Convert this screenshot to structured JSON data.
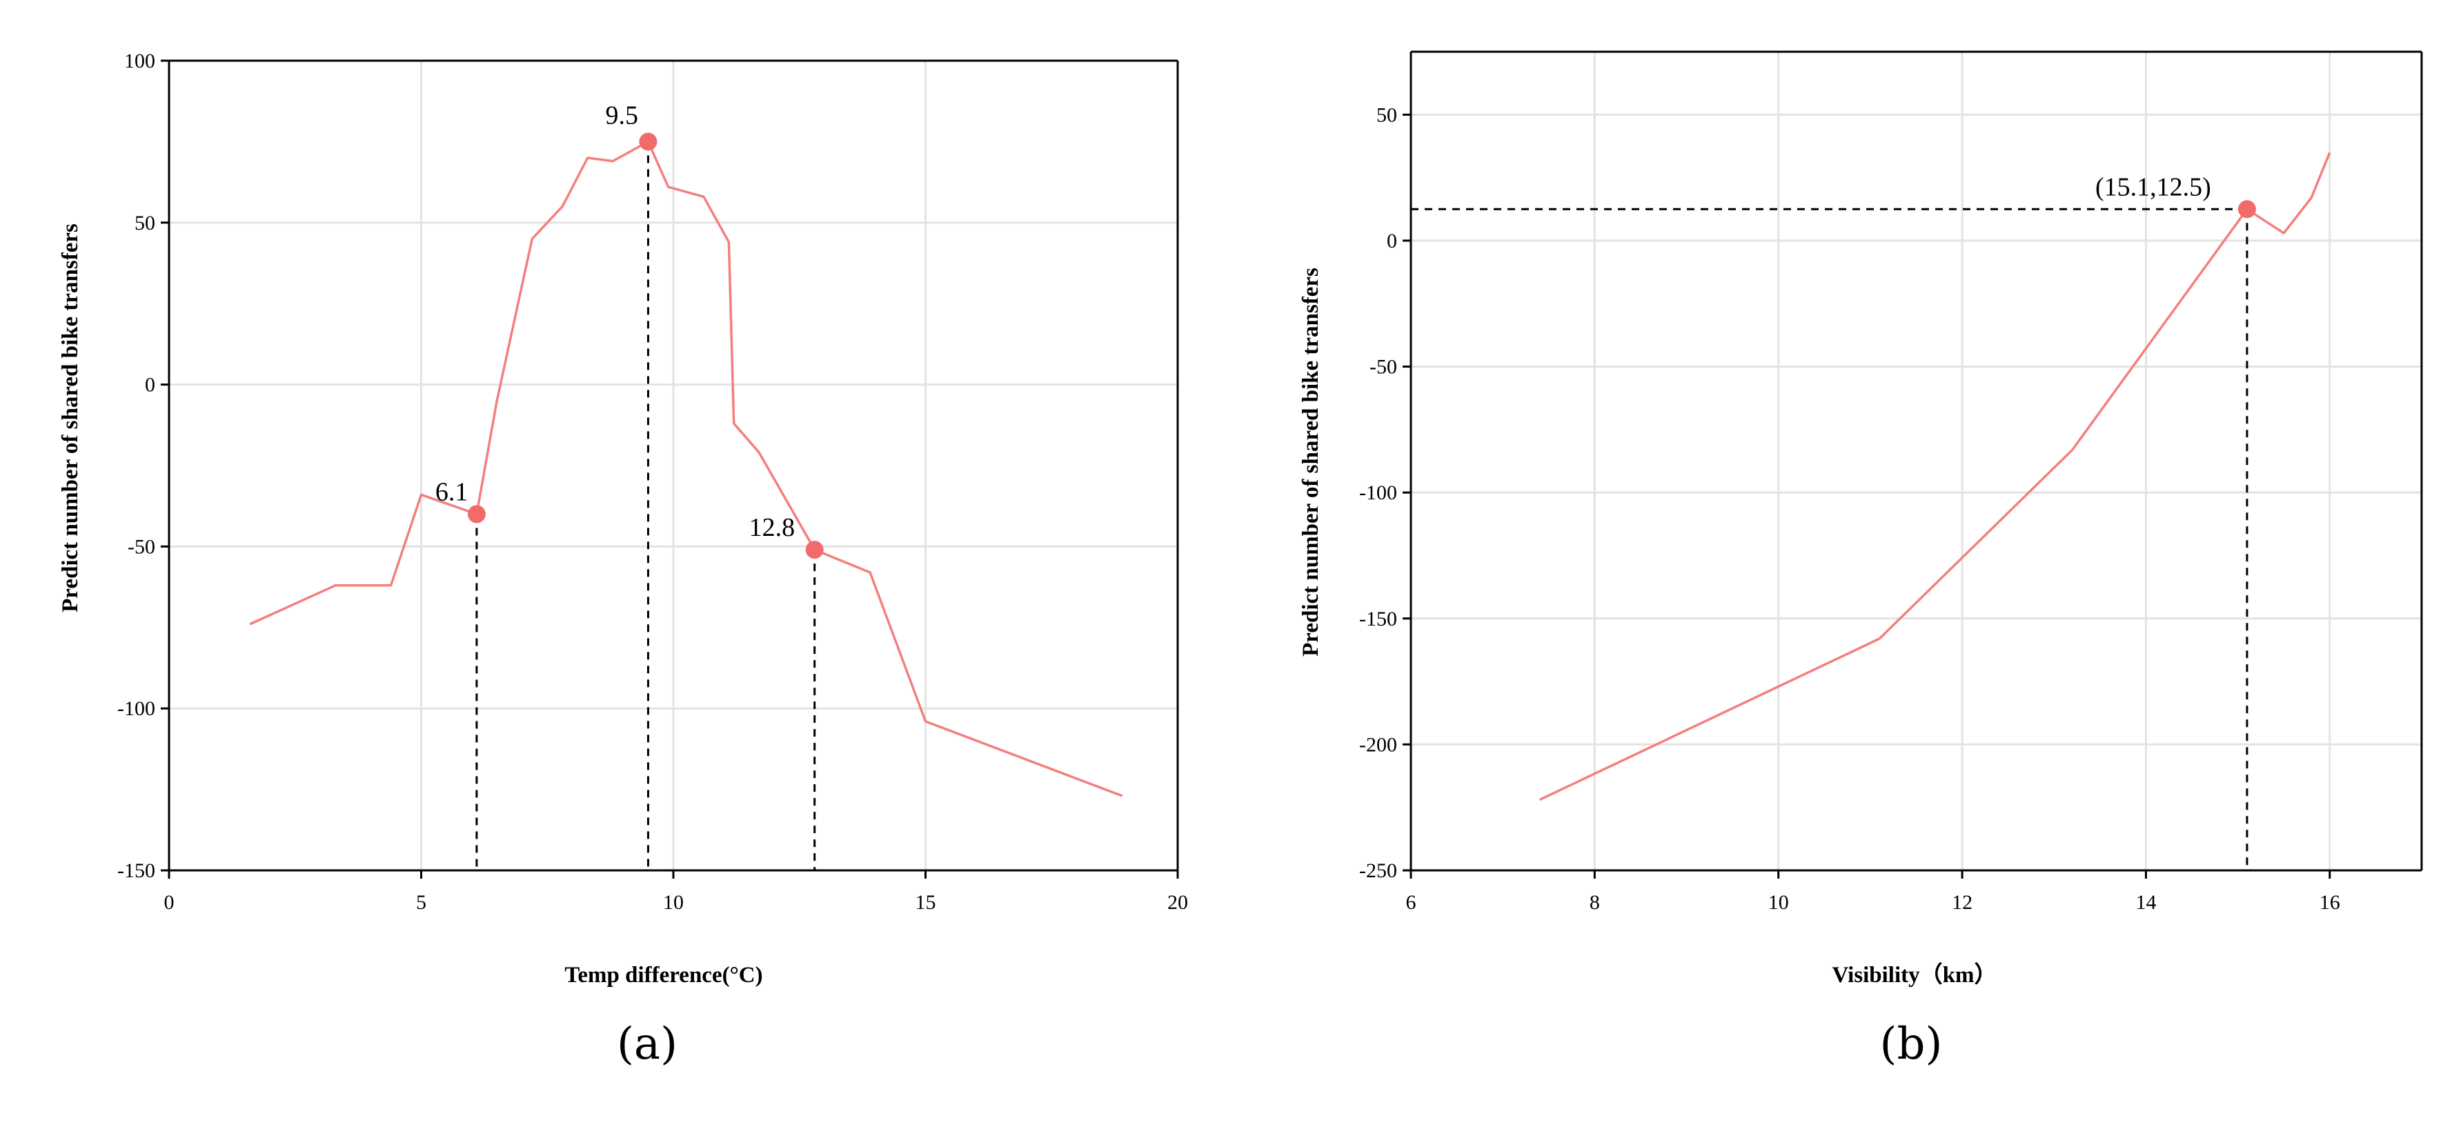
{
  "chart_data": [
    {
      "type": "line",
      "caption": "(a)",
      "xlabel": "Temp difference(°C)",
      "ylabel": "Predict number of shared bike transfers",
      "xlim": [
        0,
        20
      ],
      "ylim": [
        -150,
        100
      ],
      "xticks": [
        "0",
        "5",
        "10",
        "15",
        "20"
      ],
      "yticks": [
        "-150",
        "-100",
        "-50",
        "0",
        "50",
        "100"
      ],
      "grid": true,
      "line_color": "#f47f7f",
      "marker_color": "#f26b6b",
      "series": [
        {
          "x": [
            1.6,
            3.3,
            4.4,
            5.0,
            6.1,
            6.5,
            7.2,
            7.8,
            8.3,
            8.8,
            9.5,
            9.9,
            10.6,
            11.1,
            11.2,
            11.7,
            12.8,
            13.9,
            15.0,
            18.9
          ],
          "y": [
            -74,
            -62,
            -62,
            -34,
            -40,
            -5,
            45,
            55,
            70,
            69,
            75,
            61,
            58,
            44,
            -12,
            -21,
            -51,
            -58,
            -104,
            -127
          ]
        }
      ],
      "highlights": [
        {
          "x": 6.1,
          "y": -40,
          "label": "6.1",
          "drop": "x"
        },
        {
          "x": 9.5,
          "y": 75,
          "label": "9.5",
          "drop": "x"
        },
        {
          "x": 12.8,
          "y": -51,
          "label": "12.8",
          "drop": "x"
        }
      ]
    },
    {
      "type": "line",
      "caption": "(b)",
      "xlabel": "Visibility（km）",
      "ylabel": "Predict number of shared bike transfers",
      "xlim": [
        6,
        17
      ],
      "ylim": [
        -250,
        75
      ],
      "xticks": [
        "6",
        "8",
        "10",
        "12",
        "14",
        "16"
      ],
      "yticks": [
        "-250",
        "-200",
        "-150",
        "-100",
        "-50",
        "0",
        "50"
      ],
      "grid": true,
      "line_color": "#f47f7f",
      "marker_color": "#f26b6b",
      "series": [
        {
          "x": [
            7.4,
            11.1,
            13.2,
            15.1,
            15.5,
            15.8,
            16.0
          ],
          "y": [
            -222,
            -158,
            -83,
            12.5,
            3,
            17,
            35
          ]
        }
      ],
      "highlights": [
        {
          "x": 15.1,
          "y": 12.5,
          "label": "(15.1,12.5)",
          "drop": "xy"
        }
      ]
    }
  ]
}
